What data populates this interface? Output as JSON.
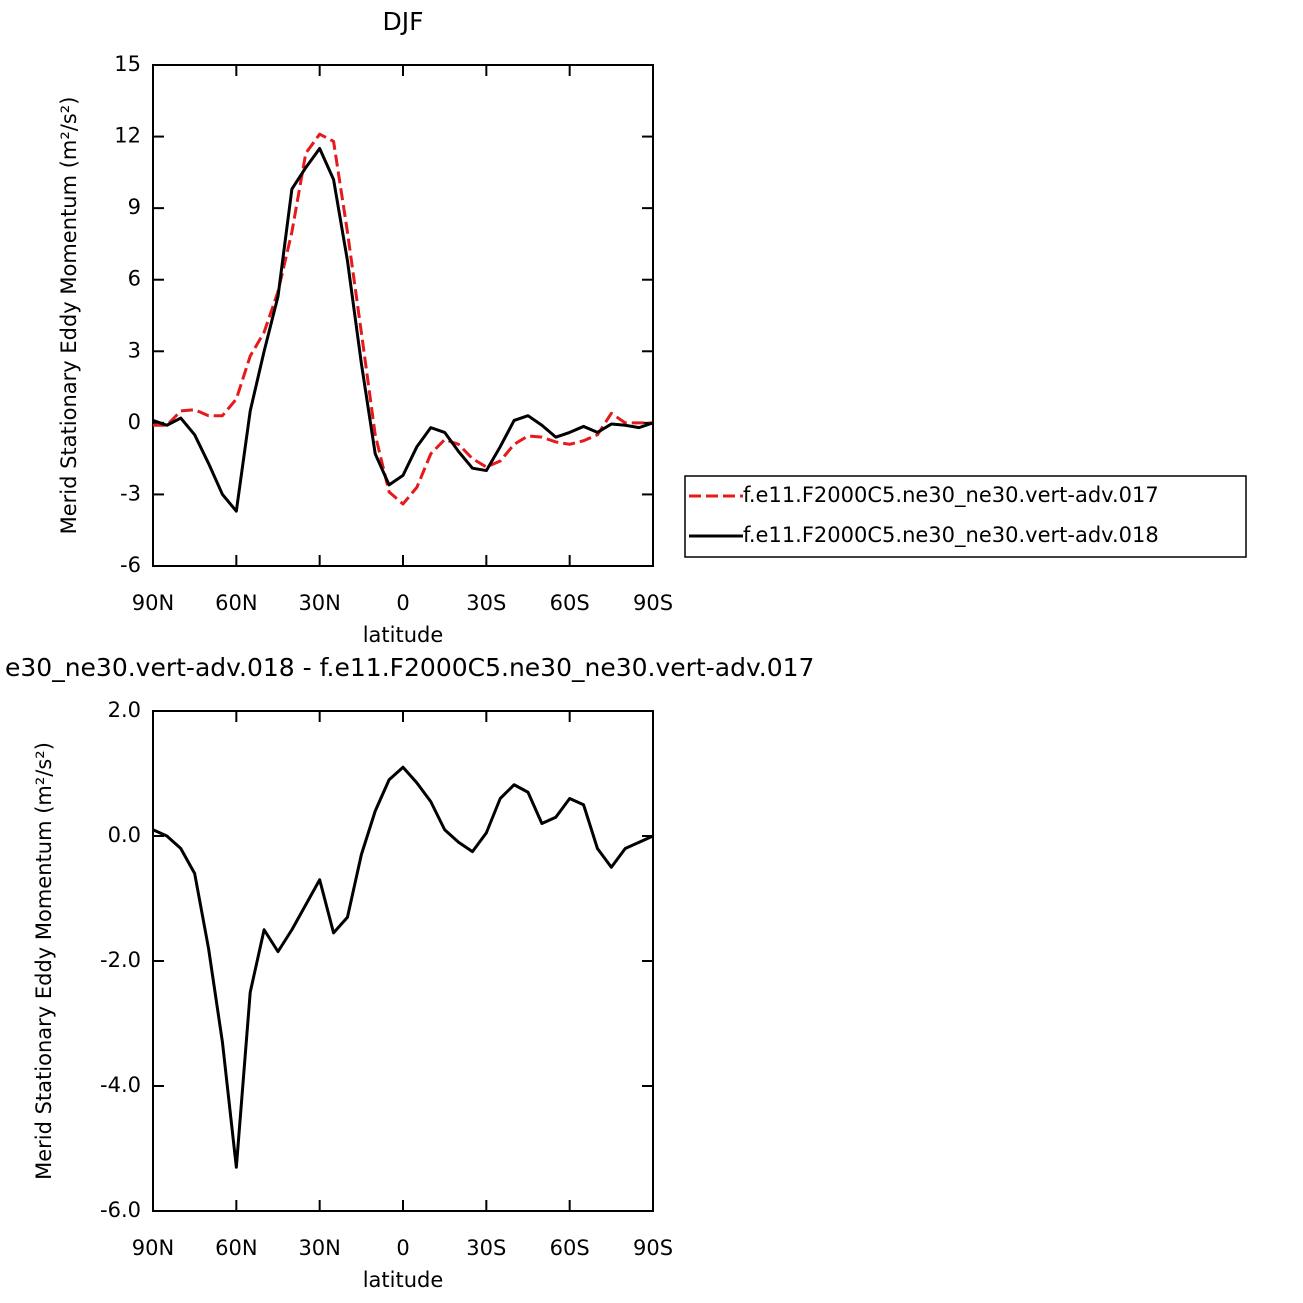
{
  "chart_data": [
    {
      "type": "line",
      "title": "DJF",
      "xlabel": "latitude",
      "ylabel": "Merid Stationary Eddy Momentum (m²/s²)",
      "x": [
        90,
        85,
        80,
        75,
        70,
        65,
        60,
        55,
        50,
        45,
        40,
        35,
        30,
        25,
        20,
        15,
        10,
        5,
        0,
        -5,
        -10,
        -15,
        -20,
        -25,
        -30,
        -35,
        -40,
        -45,
        -50,
        -55,
        -60,
        -65,
        -70,
        -75,
        -80,
        -85,
        -90
      ],
      "xlim": [
        90,
        -90
      ],
      "xticks": [
        {
          "value": 90,
          "label": "90N"
        },
        {
          "value": 60,
          "label": "60N"
        },
        {
          "value": 30,
          "label": "30N"
        },
        0,
        {
          "value": -30,
          "label": "30S"
        },
        {
          "value": -60,
          "label": "60S"
        },
        {
          "value": -90,
          "label": "90S"
        }
      ],
      "ylim": [
        -6,
        15
      ],
      "yticks": [
        -6,
        -3,
        0,
        3,
        6,
        9,
        12,
        15
      ],
      "legend": "right",
      "series": [
        {
          "name": "f.e11.F2000C5.ne30_ne30.vert-adv.017",
          "color": "#e41a1c",
          "dash": true,
          "values": [
            -0.1,
            -0.1,
            0.5,
            0.55,
            0.3,
            0.3,
            1.0,
            2.8,
            3.8,
            5.5,
            8.0,
            11.3,
            12.1,
            11.8,
            8.0,
            3.8,
            -0.5,
            -2.9,
            -3.4,
            -2.7,
            -1.3,
            -0.7,
            -0.9,
            -1.5,
            -1.85,
            -1.6,
            -0.9,
            -0.55,
            -0.6,
            -0.8,
            -0.9,
            -0.75,
            -0.5,
            0.4,
            0.0,
            0.0,
            0.0
          ]
        },
        {
          "name": "f.e11.F2000C5.ne30_ne30.vert-adv.018",
          "color": "#000000",
          "dash": false,
          "values": [
            0.1,
            -0.1,
            0.2,
            -0.5,
            -1.7,
            -3.0,
            -3.7,
            0.5,
            3.0,
            5.3,
            9.8,
            10.7,
            11.5,
            10.2,
            6.8,
            2.5,
            -1.3,
            -2.6,
            -2.2,
            -1.0,
            -0.2,
            -0.4,
            -1.2,
            -1.9,
            -2.0,
            -1.0,
            0.1,
            0.3,
            -0.1,
            -0.6,
            -0.4,
            -0.15,
            -0.4,
            -0.05,
            -0.1,
            -0.2,
            0.0
          ]
        }
      ]
    },
    {
      "type": "line",
      "title": "e30_ne30.vert-adv.018 - f.e11.F2000C5.ne30_ne30.vert-adv.017",
      "xlabel": "latitude",
      "ylabel": "Merid Stationary Eddy Momentum (m²/s²)",
      "x": [
        90,
        85,
        80,
        75,
        70,
        65,
        60,
        55,
        50,
        45,
        40,
        35,
        30,
        25,
        20,
        15,
        10,
        5,
        0,
        -5,
        -10,
        -15,
        -20,
        -25,
        -30,
        -35,
        -40,
        -45,
        -50,
        -55,
        -60,
        -65,
        -70,
        -75,
        -80,
        -85,
        -90
      ],
      "xlim": [
        90,
        -90
      ],
      "xticks": [
        {
          "value": 90,
          "label": "90N"
        },
        {
          "value": 60,
          "label": "60N"
        },
        {
          "value": 30,
          "label": "30N"
        },
        0,
        {
          "value": -30,
          "label": "30S"
        },
        {
          "value": -60,
          "label": "60S"
        },
        {
          "value": -90,
          "label": "90S"
        }
      ],
      "ylim": [
        -6,
        2
      ],
      "yticks": [
        {
          "value": -6,
          "label": "-6.0"
        },
        {
          "value": -4,
          "label": "-4.0"
        },
        {
          "value": -2,
          "label": "-2.0"
        },
        {
          "value": 0,
          "label": "0.0"
        },
        {
          "value": 2,
          "label": "2.0"
        }
      ],
      "series": [
        {
          "color": "#000000",
          "dash": false,
          "values": [
            0.1,
            0.0,
            -0.2,
            -0.6,
            -1.8,
            -3.3,
            -5.3,
            -2.5,
            -1.5,
            -1.85,
            -1.5,
            -1.1,
            -0.7,
            -1.55,
            -1.3,
            -0.3,
            0.4,
            0.9,
            1.1,
            0.85,
            0.55,
            0.1,
            -0.1,
            -0.25,
            0.05,
            0.6,
            0.82,
            0.7,
            0.2,
            0.3,
            0.6,
            0.5,
            -0.2,
            -0.5,
            -0.2,
            -0.1,
            0.0
          ]
        }
      ]
    }
  ]
}
